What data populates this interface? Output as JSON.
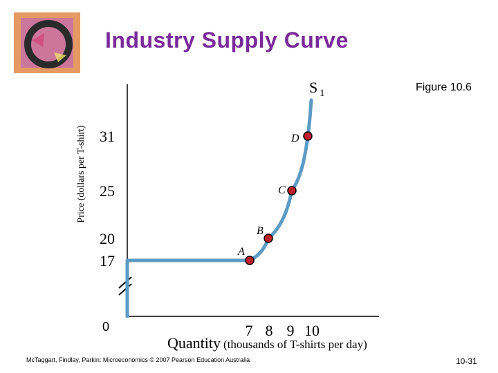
{
  "title": "Industry Supply Curve",
  "figure_label": "Figure 10.6",
  "footer": "McTaggart, Findlay, Parkin: Microeconomics © 2007 Pearson Education Australia",
  "page_number": "10-31",
  "colors": {
    "title": "#7a2a9a",
    "curve": "#5b9bc4",
    "point_fill": "#c0202a",
    "logo_bg": "#e49a62"
  },
  "chart_data": {
    "type": "line",
    "ylabel": "Price (dollars per T-shirt)",
    "xlabel_main": "Quantity",
    "xlabel_units": "(thousands of T-shirts per day)",
    "y_ticks": [
      31,
      25,
      20,
      17
    ],
    "x_ticks": [
      7,
      8,
      9,
      10
    ],
    "origin_label": "0",
    "axis_break": true,
    "series": [
      {
        "name": "S",
        "name_sub": "1"
      }
    ],
    "points": [
      {
        "label": "A",
        "x": 7,
        "y": 17
      },
      {
        "label": "B",
        "x": 8,
        "y": 20
      },
      {
        "label": "C",
        "x": 9,
        "y": 25
      },
      {
        "label": "D",
        "x": 10,
        "y": 31
      }
    ]
  }
}
